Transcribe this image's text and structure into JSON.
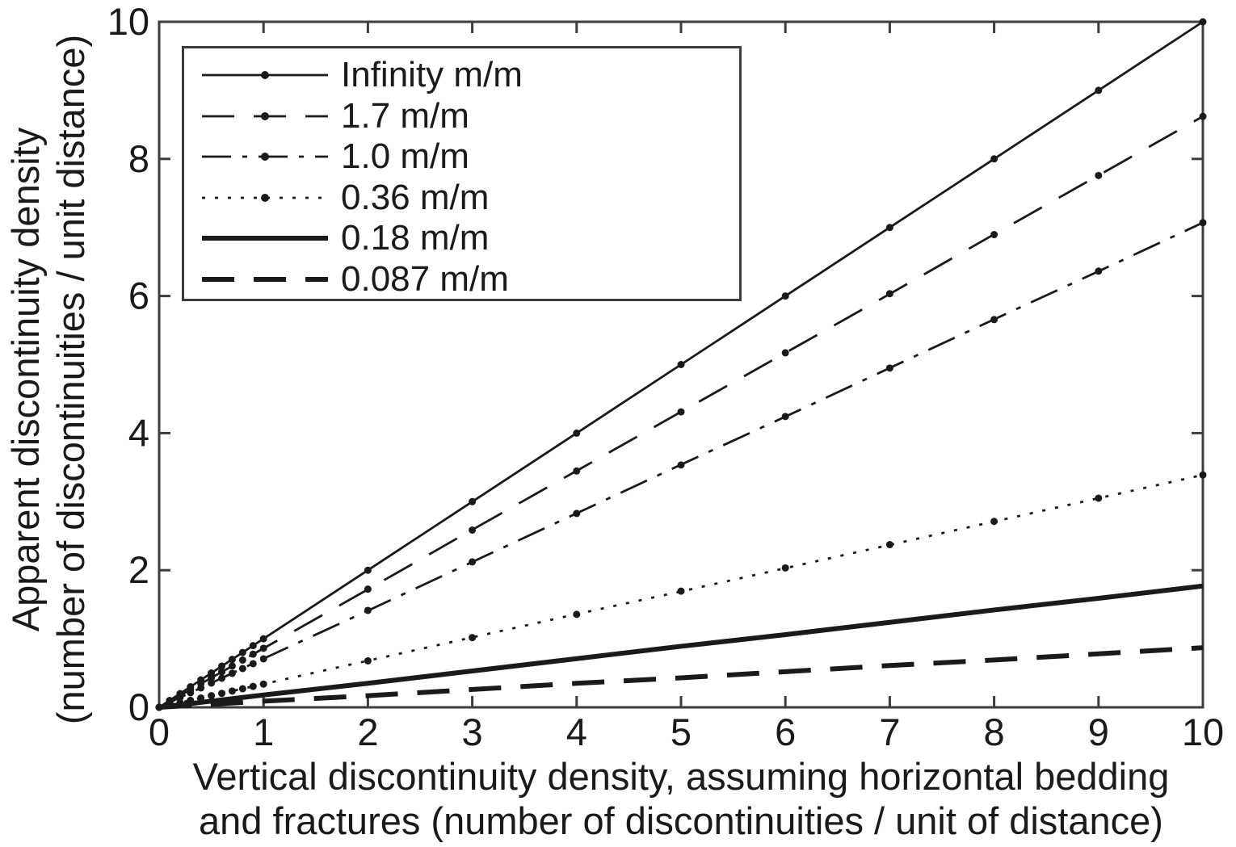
{
  "figure": {
    "background": "#ffffff",
    "axis_color": "#3d3d3d",
    "line_color": "#1a1a1a",
    "text_color": "#1a1a1a"
  },
  "chart_data": {
    "type": "line",
    "title": "",
    "xlabel_line1": "Vertical discontinuity density, assuming horizontal bedding",
    "xlabel_line2": "and fractures (number of discontinuities / unit of distance)",
    "ylabel_line1": "Apparent discontinuity density",
    "ylabel_line2": "(number of discontinuities / unit distance)",
    "xlim": [
      0,
      10
    ],
    "ylim": [
      0,
      10
    ],
    "x_ticks": [
      0,
      1,
      2,
      3,
      4,
      5,
      6,
      7,
      8,
      9,
      10
    ],
    "y_ticks": [
      0,
      2,
      4,
      6,
      8,
      10
    ],
    "grid": false,
    "legend_position": "upper-left",
    "x": [
      0,
      1,
      2,
      3,
      4,
      5,
      6,
      7,
      8,
      9,
      10
    ],
    "marker_x": [
      0,
      0.1,
      0.2,
      0.3,
      0.4,
      0.5,
      0.6,
      0.7,
      0.8,
      0.9,
      1,
      2,
      3,
      4,
      5,
      6,
      7,
      8,
      9,
      10
    ],
    "series": [
      {
        "id": "infinity",
        "label": "Infinity m/m",
        "slope": 1.0,
        "line_style": "solid",
        "line_weight": "thin",
        "markers": true,
        "values": [
          0,
          1,
          2,
          3,
          4,
          5,
          6,
          7,
          8,
          9,
          10
        ]
      },
      {
        "id": "1-7",
        "label": "1.7 m/m",
        "slope": 0.862,
        "line_style": "dashed",
        "line_weight": "thin",
        "markers": true,
        "values": [
          0,
          0.86,
          1.72,
          2.59,
          3.45,
          4.31,
          5.17,
          6.03,
          6.9,
          7.76,
          8.62
        ]
      },
      {
        "id": "1-0",
        "label": "1.0 m/m",
        "slope": 0.707,
        "line_style": "dashdot",
        "line_weight": "thin",
        "markers": true,
        "values": [
          0,
          0.71,
          1.41,
          2.12,
          2.83,
          3.54,
          4.24,
          4.95,
          5.66,
          6.36,
          7.07
        ]
      },
      {
        "id": "0-36",
        "label": "0.36 m/m",
        "slope": 0.339,
        "line_style": "dotted",
        "line_weight": "thin",
        "markers": true,
        "values": [
          0,
          0.34,
          0.68,
          1.02,
          1.36,
          1.69,
          2.03,
          2.37,
          2.71,
          3.05,
          3.39
        ]
      },
      {
        "id": "0-18",
        "label": "0.18 m/m",
        "slope": 0.177,
        "line_style": "solid",
        "line_weight": "thick",
        "markers": false,
        "values": [
          0,
          0.18,
          0.35,
          0.53,
          0.71,
          0.89,
          1.06,
          1.24,
          1.42,
          1.59,
          1.77
        ]
      },
      {
        "id": "0-087",
        "label": "0.087 m/m",
        "slope": 0.087,
        "line_style": "dashed",
        "line_weight": "thick",
        "markers": false,
        "values": [
          0,
          0.09,
          0.17,
          0.26,
          0.35,
          0.43,
          0.52,
          0.61,
          0.69,
          0.78,
          0.87
        ]
      }
    ]
  }
}
